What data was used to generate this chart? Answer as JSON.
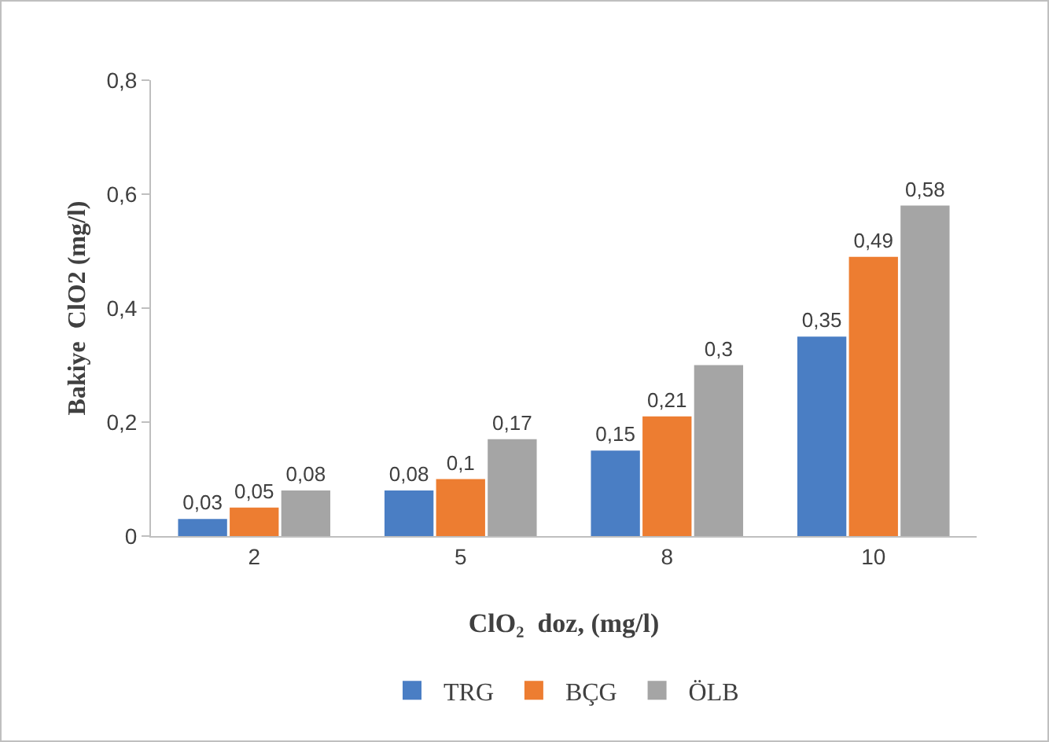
{
  "chart_data": {
    "type": "bar",
    "xlabel": "ClO₂  doz, (mg/l)",
    "ylabel": "Bakiye  ClO2 (mg/l)",
    "categories": [
      "2",
      "5",
      "8",
      "10"
    ],
    "series": [
      {
        "name": "TRG",
        "color": "#4a7ec4",
        "values": [
          0.03,
          0.08,
          0.15,
          0.35
        ],
        "value_labels": [
          "0,03",
          "0,08",
          "0,15",
          "0,35"
        ]
      },
      {
        "name": "BÇG",
        "color": "#ed7d31",
        "values": [
          0.05,
          0.1,
          0.21,
          0.49
        ],
        "value_labels": [
          "0,05",
          "0,1",
          "0,21",
          "0,49"
        ]
      },
      {
        "name": "ÖLB",
        "color": "#a5a5a5",
        "values": [
          0.08,
          0.17,
          0.3,
          0.58
        ],
        "value_labels": [
          "0,08",
          "0,17",
          "0,3",
          "0,58"
        ]
      }
    ],
    "ylim": [
      0,
      0.8
    ],
    "yticks": [
      {
        "value": 0,
        "label": "0"
      },
      {
        "value": 0.2,
        "label": "0,2"
      },
      {
        "value": 0.4,
        "label": "0,4"
      },
      {
        "value": 0.6,
        "label": "0,6"
      },
      {
        "value": 0.8,
        "label": "0,8"
      }
    ],
    "grid": false,
    "legend": "bottom"
  }
}
